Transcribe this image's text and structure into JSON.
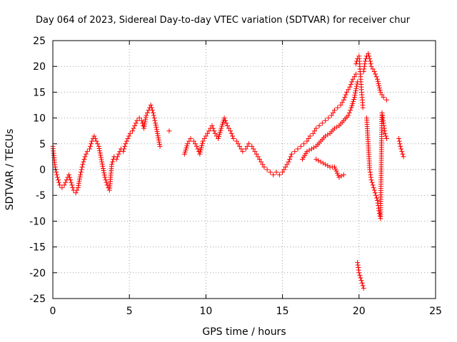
{
  "chart_data": {
    "type": "scatter",
    "title": "Day 064 of 2023, Sidereal Day-to-day VTEC variation (SDTVAR) for receiver chur",
    "xlabel": "GPS time / hours",
    "ylabel": "SDTVAR / TECUs",
    "xlim": [
      0,
      25
    ],
    "ylim": [
      -25,
      25
    ],
    "xticks": [
      0,
      5,
      10,
      15,
      20,
      25
    ],
    "yticks": [
      -25,
      -20,
      -15,
      -10,
      -5,
      0,
      5,
      10,
      15,
      20,
      25
    ],
    "grid": true,
    "marker": "+",
    "series": [
      {
        "name": "SDTVAR",
        "color": "#ff0000",
        "x": [
          0.0,
          0.15,
          0.3,
          0.45,
          0.6,
          0.75,
          0.9,
          1.05,
          1.2,
          1.35,
          1.5,
          1.65,
          1.8,
          1.95,
          2.1,
          2.25,
          2.4,
          2.55,
          2.7,
          2.85,
          3.0,
          3.4,
          3.55,
          3.7,
          3.85,
          4.0,
          4.15,
          4.3,
          4.45,
          4.6,
          4.75,
          4.9,
          5.05,
          5.2,
          5.35,
          5.5,
          5.65,
          5.8,
          5.95,
          6.1,
          6.25,
          6.4,
          6.55,
          6.7,
          7.0,
          7.6,
          8.6,
          8.8,
          9.0,
          9.2,
          9.4,
          9.6,
          9.8,
          10.0,
          10.2,
          10.4,
          10.6,
          10.8,
          11.0,
          11.2,
          11.4,
          11.6,
          11.8,
          12.0,
          12.2,
          12.4,
          12.6,
          12.8,
          13.0,
          13.2,
          13.4,
          13.6,
          13.8,
          14.0,
          14.2,
          14.4,
          14.6,
          14.8,
          15.0,
          15.2,
          15.4,
          15.6,
          15.8,
          16.0,
          16.2,
          16.4,
          16.6,
          16.8,
          17.0,
          17.2,
          17.4,
          17.6,
          17.8,
          18.0,
          18.2,
          18.4,
          18.6,
          18.8,
          19.0,
          19.2,
          19.4,
          19.6,
          19.8,
          16.3,
          16.6,
          16.9,
          17.2,
          17.5,
          17.8,
          18.1,
          18.4,
          18.7,
          19.0,
          19.3,
          19.5,
          19.7,
          19.9,
          17.2,
          17.5,
          17.8,
          18.1,
          18.4,
          18.7,
          19.0,
          19.8,
          19.9,
          20.0,
          20.05,
          20.1,
          20.15,
          20.2,
          20.25,
          19.9,
          20.0,
          20.1,
          20.2,
          20.3,
          20.3,
          20.4,
          20.5,
          20.6,
          20.7,
          20.8,
          21.0,
          21.2,
          21.4,
          21.6,
          21.8,
          20.5,
          20.6,
          20.7,
          20.8,
          20.9,
          21.0,
          21.1,
          21.2,
          21.3,
          21.4,
          21.5,
          21.6,
          21.7,
          21.8,
          22.6,
          22.7,
          22.8,
          22.9
        ],
        "y": [
          4.5,
          0.5,
          -1.5,
          -3.0,
          -3.5,
          -3.0,
          -2.0,
          -1.0,
          -2.5,
          -4.0,
          -4.5,
          -3.5,
          -1.0,
          1.0,
          2.5,
          3.5,
          4.0,
          5.5,
          6.5,
          5.5,
          4.5,
          -1.5,
          -3.0,
          -4.0,
          1.0,
          2.5,
          2.0,
          3.0,
          4.0,
          3.5,
          5.0,
          6.0,
          7.0,
          7.5,
          8.5,
          9.5,
          10.0,
          9.5,
          8.0,
          10.5,
          11.5,
          12.5,
          11.0,
          9.0,
          4.5,
          7.5,
          3.0,
          5.0,
          6.0,
          5.5,
          4.5,
          3.0,
          5.5,
          6.5,
          7.5,
          8.5,
          7.0,
          6.0,
          8.0,
          10.0,
          8.5,
          7.5,
          6.0,
          5.5,
          4.5,
          3.5,
          4.0,
          5.0,
          4.5,
          3.5,
          2.5,
          1.5,
          0.5,
          0.0,
          -0.5,
          -1.0,
          -0.5,
          -1.0,
          -0.5,
          0.5,
          1.5,
          3.0,
          3.5,
          4.0,
          4.5,
          5.0,
          5.5,
          6.5,
          7.0,
          8.0,
          8.5,
          9.0,
          9.5,
          10.0,
          10.5,
          11.5,
          12.0,
          12.5,
          13.5,
          15.0,
          16.0,
          17.5,
          18.5,
          2.0,
          3.5,
          4.0,
          4.5,
          5.5,
          6.5,
          7.0,
          8.0,
          8.5,
          9.5,
          10.5,
          12.0,
          14.0,
          17.0,
          2.0,
          1.5,
          1.0,
          0.5,
          0.5,
          -1.5,
          -1.0,
          20.5,
          21.5,
          22.0,
          20.0,
          18.0,
          16.0,
          14.0,
          12.0,
          -18.0,
          -20.0,
          -21.0,
          -22.0,
          -23.0,
          19.0,
          21.0,
          22.0,
          22.5,
          21.5,
          20.0,
          19.0,
          17.5,
          15.0,
          14.0,
          13.5,
          10.0,
          5.0,
          0.0,
          -2.0,
          -3.0,
          -4.0,
          -5.0,
          -6.0,
          -8.0,
          -9.5,
          11.0,
          9.0,
          7.0,
          6.0,
          6.0,
          4.5,
          3.5,
          2.5
        ]
      }
    ]
  }
}
